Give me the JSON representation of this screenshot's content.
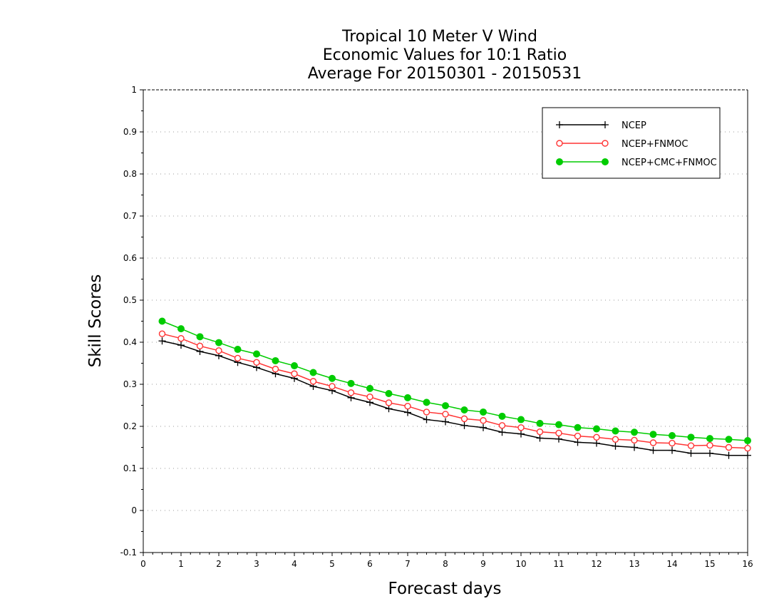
{
  "chart_data": {
    "type": "line",
    "title_lines": [
      "Tropical 10 Meter V Wind",
      "Economic Values for 10:1 Ratio",
      "Average For 20150301 - 20150531"
    ],
    "xlabel": "Forecast days",
    "ylabel": "Skill Scores",
    "xlim": [
      0,
      16
    ],
    "ylim": [
      -0.1,
      1
    ],
    "xticks": [
      0,
      1,
      2,
      3,
      4,
      5,
      6,
      7,
      8,
      9,
      10,
      11,
      12,
      13,
      14,
      15,
      16
    ],
    "xtick_labels": [
      "0",
      "1",
      "2",
      "3",
      "4",
      "5",
      "6",
      "7",
      "8",
      "9",
      "10",
      "11",
      "12",
      "13",
      "14",
      "15",
      "16"
    ],
    "yticks": [
      -0.1,
      0,
      0.1,
      0.2,
      0.3,
      0.4,
      0.5,
      0.6,
      0.7,
      0.8,
      0.9,
      1
    ],
    "ytick_labels": [
      "-0.1",
      "0",
      "0.1",
      "0.2",
      "0.3",
      "0.4",
      "0.5",
      "0.6",
      "0.7",
      "0.8",
      "0.9",
      "1"
    ],
    "grid": "horizontal dotted",
    "legend_position": "top-right",
    "x": [
      0.5,
      1,
      1.5,
      2,
      2.5,
      3,
      3.5,
      4,
      4.5,
      5,
      5.5,
      6,
      6.5,
      7,
      7.5,
      8,
      8.5,
      9,
      9.5,
      10,
      10.5,
      11,
      11.5,
      12,
      12.5,
      13,
      13.5,
      14,
      14.5,
      15,
      15.5,
      16
    ],
    "series": [
      {
        "name": "NCEP",
        "color": "#000000",
        "marker": "plus",
        "values": [
          0.403,
          0.393,
          0.378,
          0.368,
          0.352,
          0.34,
          0.325,
          0.314,
          0.295,
          0.285,
          0.268,
          0.257,
          0.242,
          0.233,
          0.216,
          0.211,
          0.202,
          0.197,
          0.186,
          0.182,
          0.172,
          0.17,
          0.162,
          0.16,
          0.153,
          0.15,
          0.143,
          0.143,
          0.136,
          0.136,
          0.131,
          0.131
        ]
      },
      {
        "name": "NCEP+FNMOC",
        "color": "#ff3333",
        "marker": "open-circle",
        "values": [
          0.42,
          0.409,
          0.391,
          0.38,
          0.362,
          0.352,
          0.336,
          0.325,
          0.307,
          0.295,
          0.28,
          0.27,
          0.256,
          0.248,
          0.234,
          0.229,
          0.218,
          0.214,
          0.202,
          0.197,
          0.187,
          0.184,
          0.177,
          0.174,
          0.169,
          0.167,
          0.161,
          0.16,
          0.154,
          0.155,
          0.15,
          0.148
        ]
      },
      {
        "name": "NCEP+CMC+FNMOC",
        "color": "#00cc00",
        "marker": "filled-circle",
        "values": [
          0.45,
          0.432,
          0.413,
          0.399,
          0.383,
          0.372,
          0.356,
          0.344,
          0.328,
          0.314,
          0.302,
          0.29,
          0.278,
          0.268,
          0.257,
          0.249,
          0.239,
          0.234,
          0.224,
          0.216,
          0.207,
          0.204,
          0.197,
          0.194,
          0.189,
          0.186,
          0.181,
          0.178,
          0.174,
          0.171,
          0.169,
          0.166
        ]
      }
    ]
  }
}
